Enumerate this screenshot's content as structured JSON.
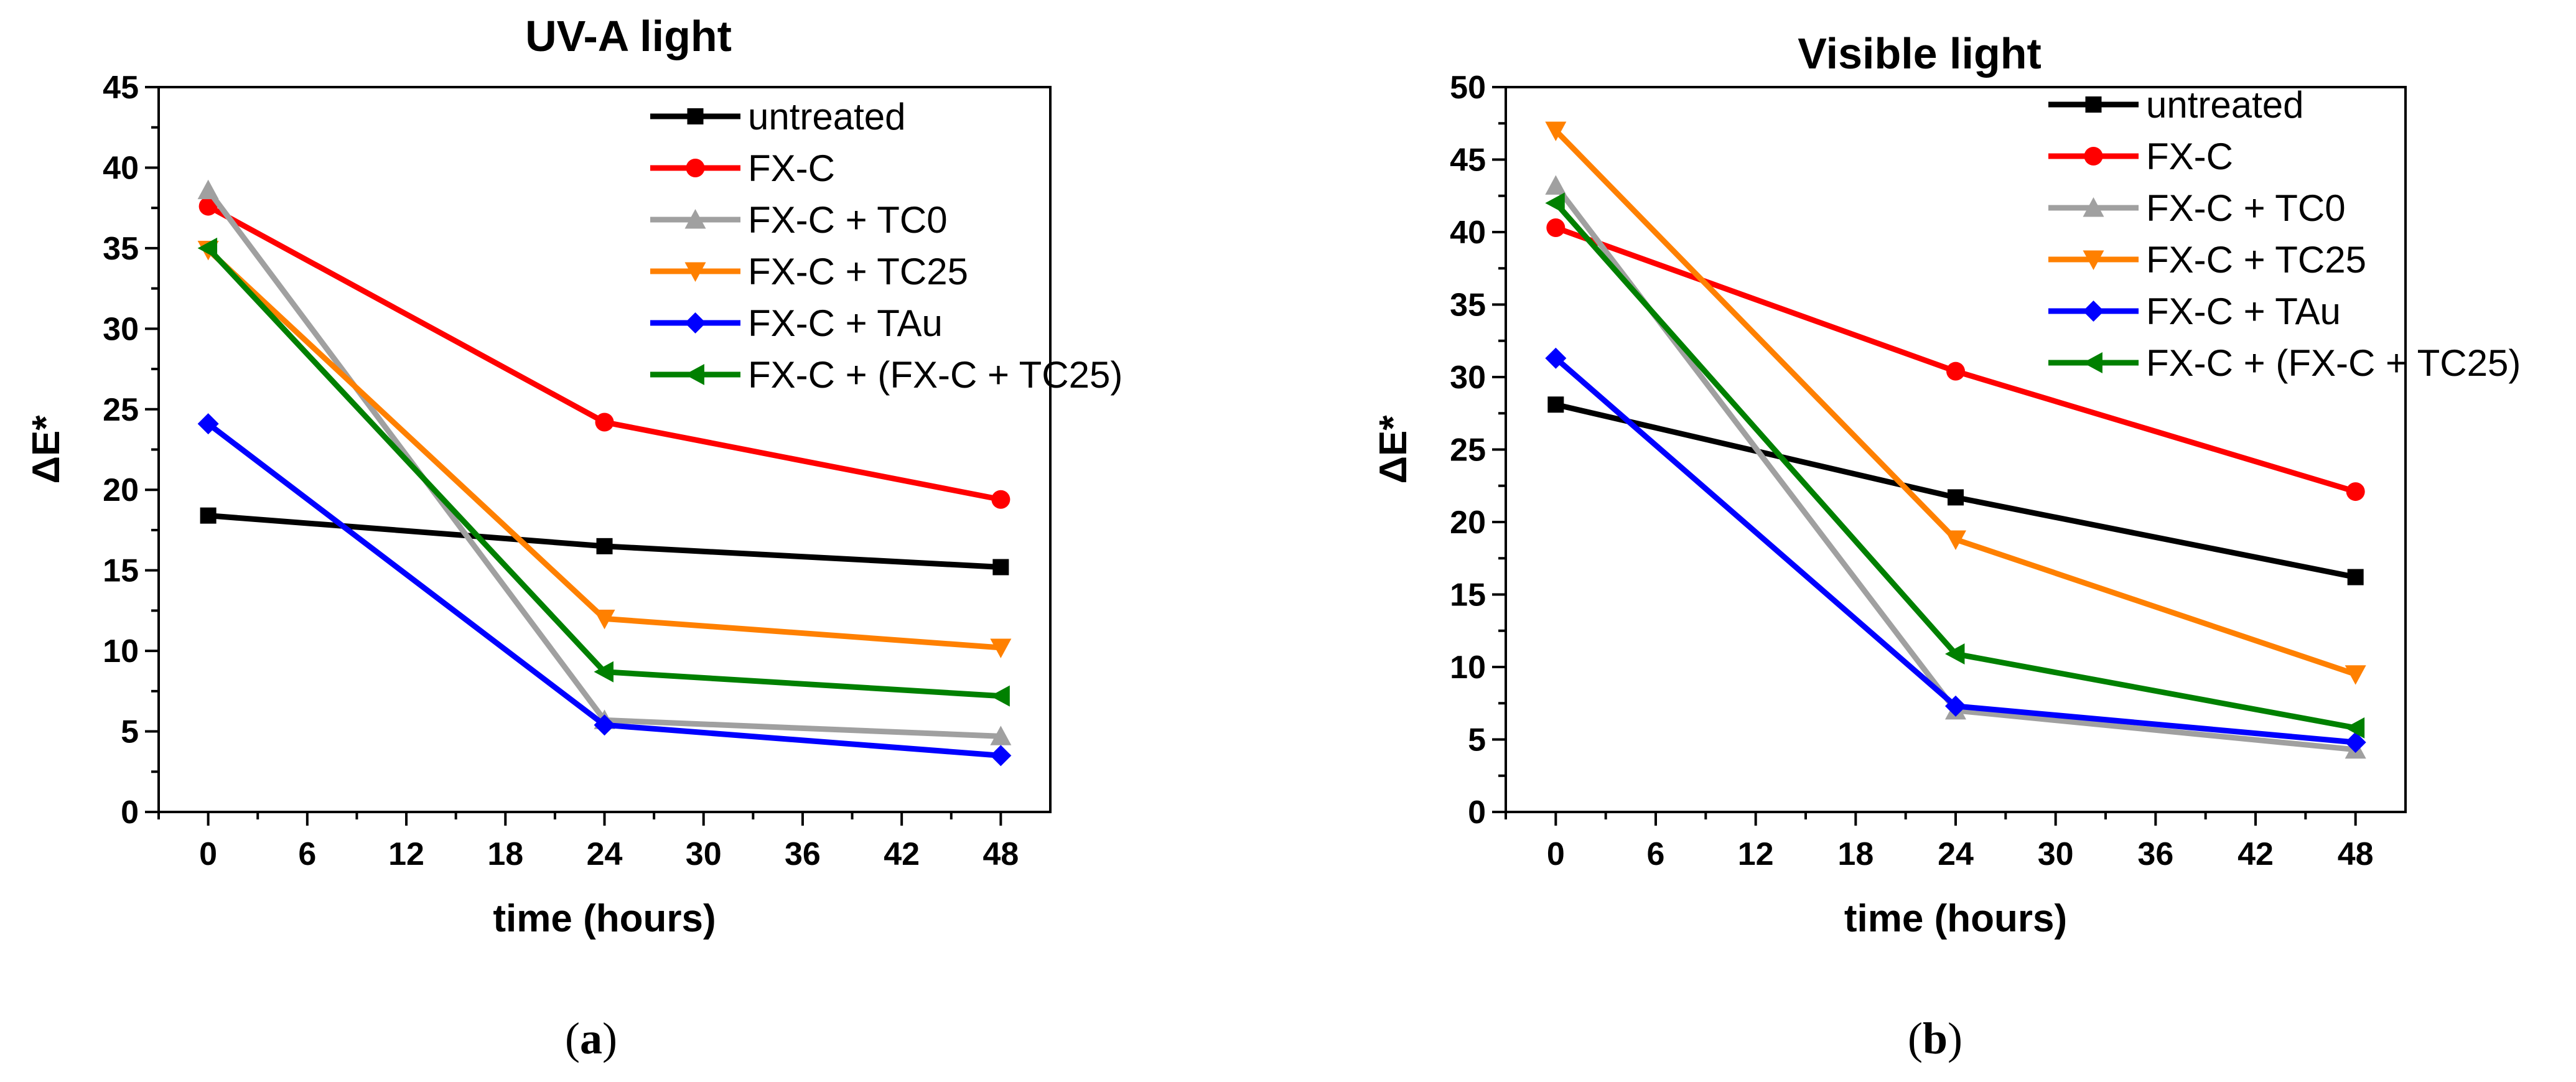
{
  "chart_data": [
    {
      "type": "line",
      "title": "UV-A light",
      "xlabel": "time (hours)",
      "ylabel": "ΔE*",
      "xlim": [
        -3,
        51
      ],
      "ylim": [
        0,
        45
      ],
      "xticks": [
        0,
        6,
        12,
        18,
        24,
        30,
        36,
        42,
        48
      ],
      "yticks": [
        0,
        5,
        10,
        15,
        20,
        25,
        30,
        35,
        40,
        45
      ],
      "caption_letter": "a",
      "legend_position": "top-right",
      "x": [
        0,
        24,
        48
      ],
      "series": [
        {
          "name": "untreated",
          "color": "#000000",
          "marker": "square",
          "values": [
            18.4,
            16.5,
            15.2
          ]
        },
        {
          "name": "FX-C",
          "color": "#ff0000",
          "marker": "circle",
          "values": [
            37.6,
            24.2,
            19.4
          ]
        },
        {
          "name": "FX-C + TC0",
          "color": "#a0a0a0",
          "marker": "triangle-up",
          "values": [
            38.6,
            5.7,
            4.7
          ]
        },
        {
          "name": "FX-C + TC25",
          "color": "#ff8000",
          "marker": "triangle-down",
          "values": [
            34.9,
            12.0,
            10.2
          ]
        },
        {
          "name": "FX-C + TAu",
          "color": "#0000ff",
          "marker": "diamond",
          "values": [
            24.1,
            5.4,
            3.5
          ]
        },
        {
          "name": "FX-C + (FX-C + TC25)",
          "color": "#008000",
          "marker": "triangle-left",
          "values": [
            35.0,
            8.7,
            7.2
          ]
        }
      ]
    },
    {
      "type": "line",
      "title": "Visible light",
      "xlabel": "time (hours)",
      "ylabel": "ΔE*",
      "xlim": [
        -3,
        51
      ],
      "ylim": [
        0,
        50
      ],
      "xticks": [
        0,
        6,
        12,
        18,
        24,
        30,
        36,
        42,
        48
      ],
      "yticks": [
        0,
        5,
        10,
        15,
        20,
        25,
        30,
        35,
        40,
        45,
        50
      ],
      "caption_letter": "b",
      "legend_position": "top-right",
      "x": [
        0,
        24,
        48
      ],
      "series": [
        {
          "name": "untreated",
          "color": "#000000",
          "marker": "square",
          "values": [
            28.1,
            21.7,
            16.2
          ]
        },
        {
          "name": "FX-C",
          "color": "#ff0000",
          "marker": "circle",
          "values": [
            40.3,
            30.4,
            22.1
          ]
        },
        {
          "name": "FX-C + TC0",
          "color": "#a0a0a0",
          "marker": "triangle-up",
          "values": [
            43.2,
            7.0,
            4.3
          ]
        },
        {
          "name": "FX-C + TC25",
          "color": "#ff8000",
          "marker": "triangle-down",
          "values": [
            47.0,
            18.8,
            9.5
          ]
        },
        {
          "name": "FX-C + TAu",
          "color": "#0000ff",
          "marker": "diamond",
          "values": [
            31.3,
            7.3,
            4.8
          ]
        },
        {
          "name": "FX-C + (FX-C + TC25)",
          "color": "#008000",
          "marker": "triangle-left",
          "values": [
            42.0,
            10.9,
            5.8
          ]
        }
      ]
    }
  ]
}
